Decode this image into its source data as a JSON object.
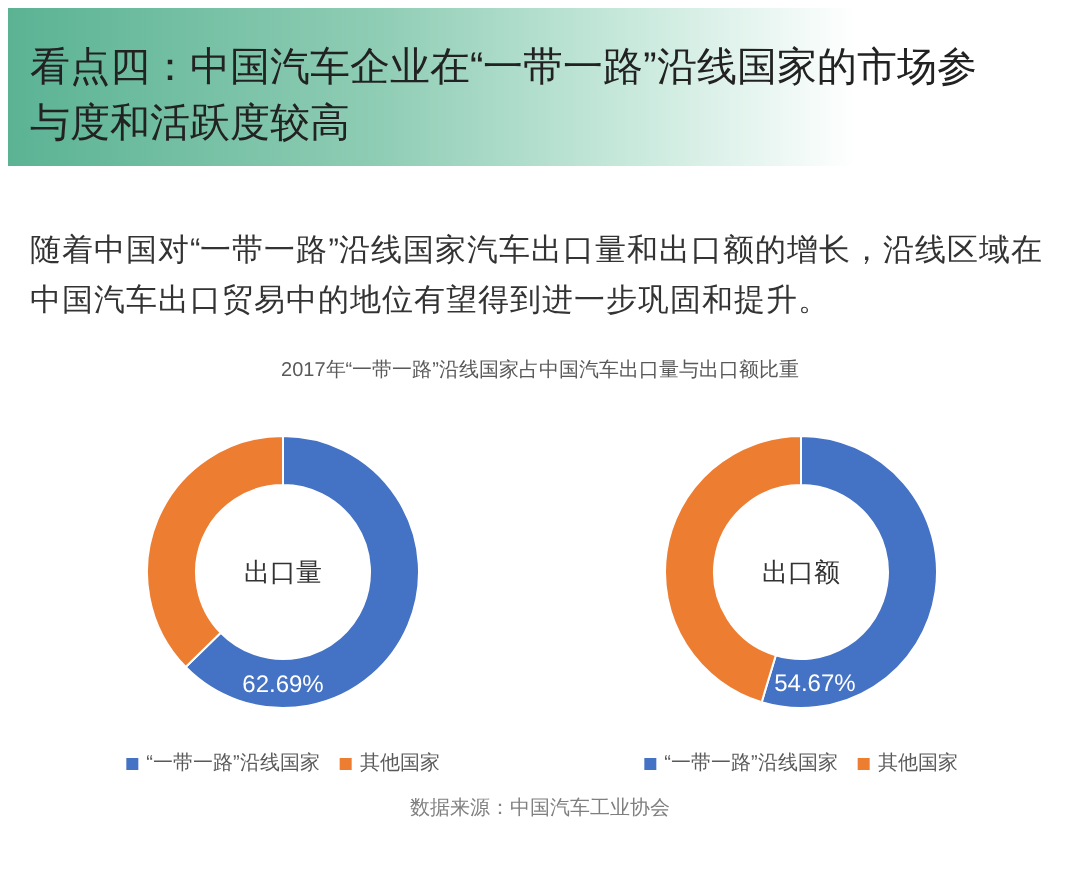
{
  "chart_data": [
    {
      "type": "donut",
      "title": "出口量",
      "categories": [
        "“一带一路”沿线国家",
        "其他国家"
      ],
      "values": [
        62.69,
        37.31
      ],
      "colors": [
        "#4472c4",
        "#ed7d31"
      ],
      "value_labels": [
        "62.69%",
        null
      ],
      "legend": "bottom",
      "annotations": [
        "看点四：中国汽车企业在“一带一路”沿线国家的市场参与度和活跃度较高",
        "随着中国对“一带一路”沿线国家汽车出口量和出口额的增长，沿线区域在中国汽车出口贸易中的地位有望得到进一步巩固和提升。",
        "2017年“一带一路”沿线国家占中国汽车出口量与出口额比重",
        "数据来源：中国汽车工业协会"
      ]
    },
    {
      "type": "donut",
      "title": "出口额",
      "categories": [
        "“一带一路”沿线国家",
        "其他国家"
      ],
      "values": [
        54.67,
        45.33
      ],
      "colors": [
        "#4472c4",
        "#ed7d31"
      ],
      "value_labels": [
        "54.67%",
        null
      ],
      "legend": "bottom"
    }
  ]
}
